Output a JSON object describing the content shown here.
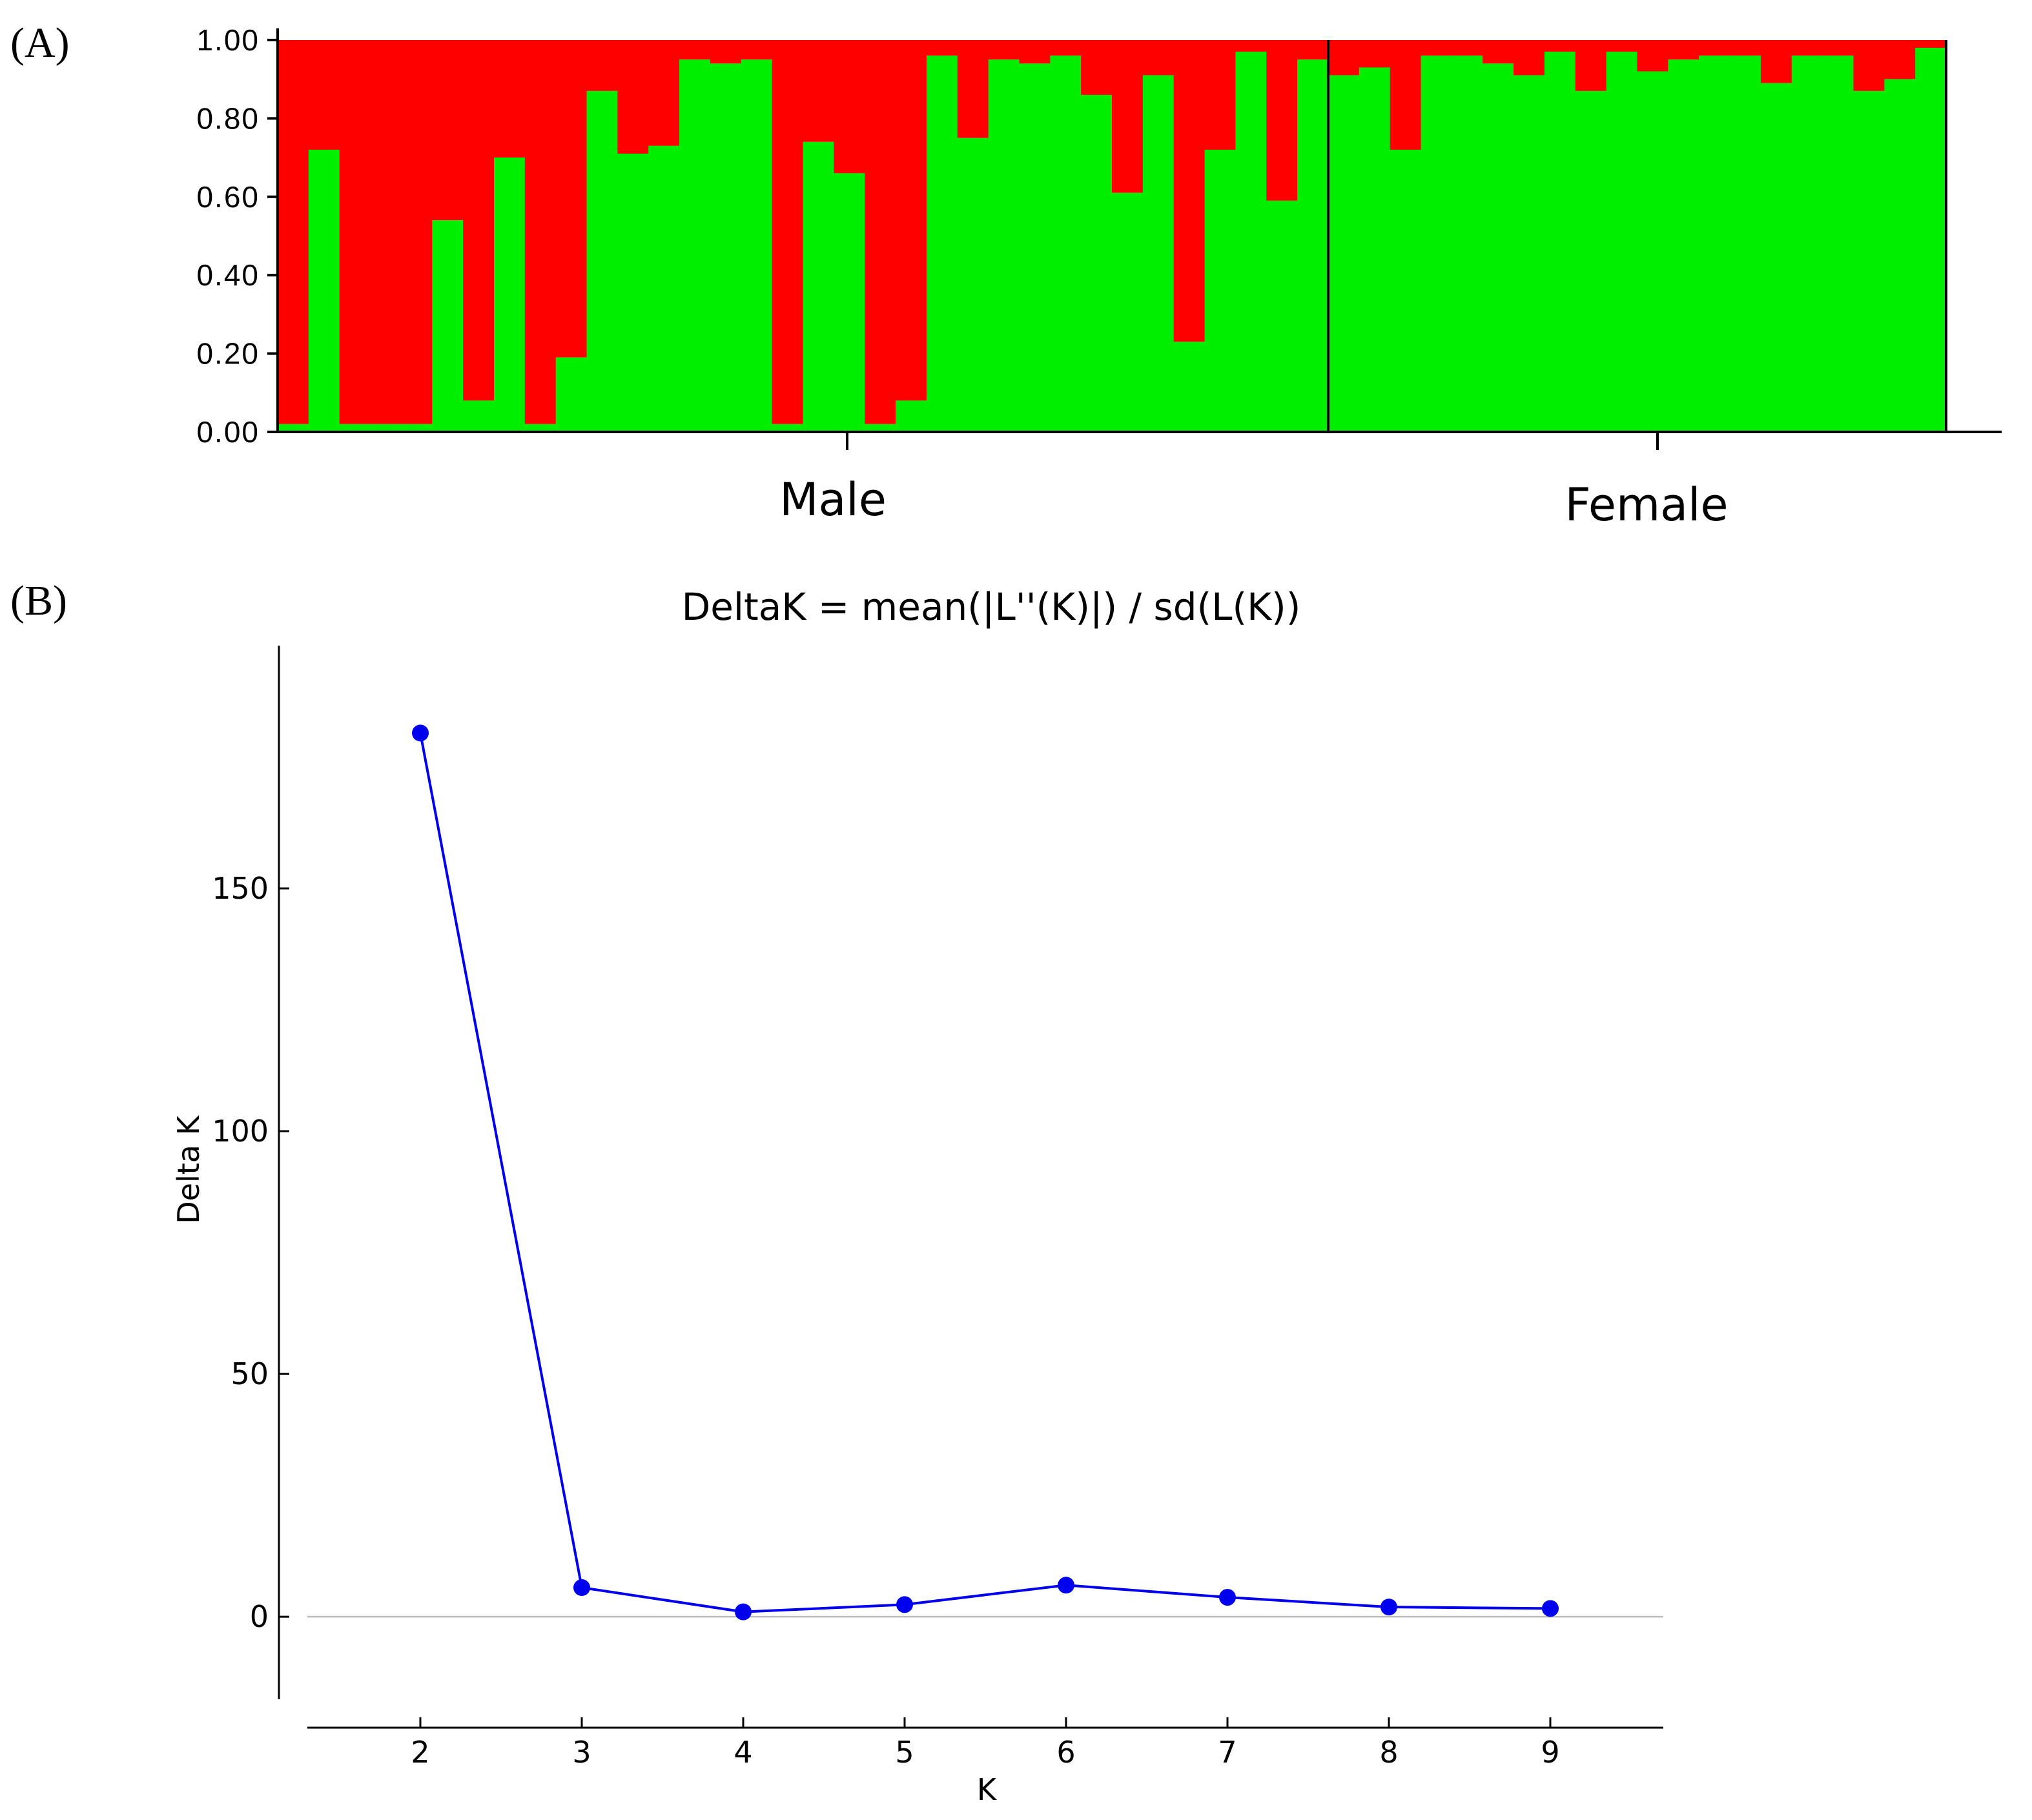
{
  "panels": {
    "a_label": "(A)",
    "b_label": "(B)"
  },
  "colors": {
    "cluster_1": "#FF0000",
    "cluster_2": "#00EE00",
    "line": "#0000EE",
    "zero_line": "#BBBBBB"
  },
  "chart_data": [
    {
      "type": "bar",
      "stacked": true,
      "title": "",
      "ylim": [
        0,
        1
      ],
      "yticks": [
        "0.00",
        "0.20",
        "0.40",
        "0.60",
        "0.80",
        "1.00"
      ],
      "groups": [
        {
          "name": "Male",
          "count": 34
        },
        {
          "name": "Female",
          "count": 20
        }
      ],
      "series": [
        {
          "name": "",
          "color": "#00EE00",
          "values": [
            0.02,
            0.72,
            0.02,
            0.02,
            0.02,
            0.54,
            0.08,
            0.7,
            0.02,
            0.19,
            0.87,
            0.71,
            0.73,
            0.95,
            0.94,
            0.95,
            0.02,
            0.74,
            0.66,
            0.02,
            0.08,
            0.96,
            0.75,
            0.95,
            0.94,
            0.96,
            0.86,
            0.61,
            0.91,
            0.23,
            0.72,
            0.97,
            0.59,
            0.95,
            0.91,
            0.93,
            0.72,
            0.96,
            0.96,
            0.94,
            0.91,
            0.97,
            0.87,
            0.97,
            0.92,
            0.95,
            0.96,
            0.96,
            0.89,
            0.96,
            0.96,
            0.87,
            0.9,
            0.98
          ]
        },
        {
          "name": "",
          "color": "#FF0000",
          "values": "remainder to 1.00"
        }
      ]
    },
    {
      "type": "line",
      "title": "DeltaK = mean(|L''(K)|) / sd(L(K))",
      "xlabel": "K",
      "ylabel": "Delta K",
      "x": [
        2,
        3,
        4,
        5,
        6,
        7,
        8,
        9
      ],
      "y": [
        182,
        6,
        1,
        2.5,
        6.5,
        4,
        2,
        1.7
      ],
      "xlim": [
        1.3,
        9.7
      ],
      "ylim": [
        -17,
        200
      ],
      "yticks": [
        0,
        50,
        100,
        150
      ],
      "xticks": [
        2,
        3,
        4,
        5,
        6,
        7,
        8,
        9
      ],
      "grid": false
    }
  ]
}
